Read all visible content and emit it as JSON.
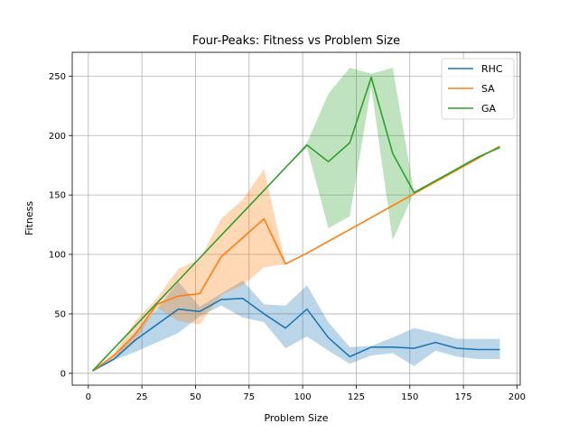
{
  "chart_data": {
    "type": "line",
    "title": "Four-Peaks: Fitness vs Problem Size",
    "xlabel": "Problem Size",
    "ylabel": "Fitness",
    "xlim": [
      -7.5,
      201.5
    ],
    "ylim": [
      -10,
      270
    ],
    "xticks": [
      0,
      25,
      50,
      75,
      100,
      125,
      150,
      175,
      200
    ],
    "yticks": [
      0,
      50,
      100,
      150,
      200,
      250
    ],
    "grid": true,
    "legend_position": "top-right",
    "series": [
      {
        "name": "RHC",
        "color": "#1f77b4",
        "x": [
          2,
          12,
          22,
          32,
          42,
          52,
          62,
          72,
          82,
          92,
          102,
          112,
          122,
          132,
          142,
          152,
          162,
          172,
          182,
          192
        ],
        "values": [
          2,
          12,
          28,
          41,
          54,
          52,
          62,
          63,
          50,
          38,
          54,
          30,
          14,
          22,
          22,
          21,
          26,
          21,
          20,
          20
        ],
        "lower": [
          2,
          11,
          18,
          26,
          34,
          48,
          57,
          47,
          43,
          21,
          31,
          19,
          8,
          15,
          17,
          6,
          19,
          14,
          12,
          12
        ],
        "upper": [
          2,
          13,
          35,
          54,
          77,
          56,
          67,
          78,
          58,
          57,
          74,
          43,
          22,
          23,
          30,
          38,
          34,
          29,
          29,
          29
        ]
      },
      {
        "name": "SA",
        "color": "#ff7f0e",
        "x": [
          2,
          12,
          22,
          32,
          42,
          52,
          62,
          72,
          82,
          92,
          102,
          112,
          122,
          132,
          142,
          152,
          162,
          172,
          182,
          192
        ],
        "values": [
          2,
          15,
          33,
          58,
          65,
          67,
          98,
          114,
          130,
          92,
          101,
          111,
          121,
          131,
          141,
          151,
          161,
          171,
          181,
          191
        ],
        "lower": [
          2,
          13,
          28,
          55,
          44,
          41,
          66,
          74,
          89,
          92,
          101,
          111,
          121,
          131,
          141,
          151,
          161,
          171,
          181,
          191
        ],
        "upper": [
          2,
          17,
          44,
          63,
          88,
          96,
          130,
          146,
          172,
          92,
          101,
          111,
          121,
          131,
          141,
          151,
          161,
          171,
          181,
          192
        ]
      },
      {
        "name": "GA",
        "color": "#2ca02c",
        "x": [
          2,
          12,
          22,
          32,
          42,
          52,
          62,
          72,
          82,
          92,
          102,
          112,
          122,
          132,
          142,
          152,
          162,
          172,
          182,
          192
        ],
        "values": [
          2,
          21,
          40,
          59,
          78,
          97,
          116,
          135,
          154,
          173,
          192,
          178,
          194,
          249,
          185,
          152,
          162,
          172,
          182,
          190
        ],
        "lower": [
          2,
          21,
          40,
          59,
          78,
          97,
          116,
          135,
          154,
          173,
          190,
          122,
          132,
          241,
          112,
          152,
          162,
          172,
          182,
          189
        ],
        "upper": [
          2,
          21,
          40,
          59,
          78,
          97,
          116,
          135,
          154,
          173,
          194,
          235,
          257,
          252,
          257,
          152,
          162,
          172,
          182,
          191
        ]
      }
    ]
  }
}
